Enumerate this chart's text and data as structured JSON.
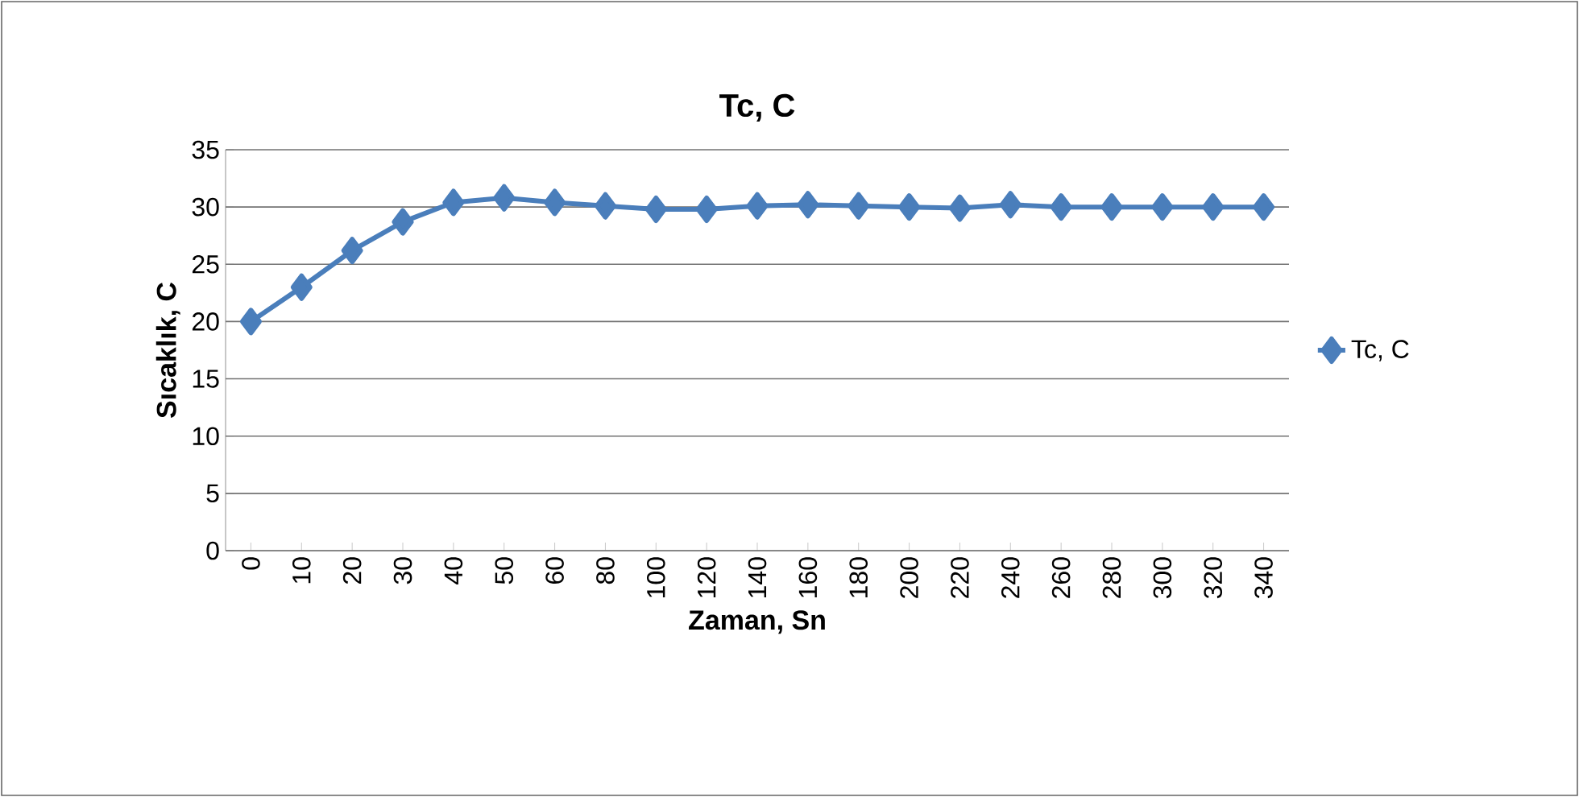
{
  "chart_data": {
    "type": "line",
    "title": "Tc,  C",
    "xlabel": "Zaman, Sn",
    "ylabel": "Sıcaklık, C",
    "categories": [
      "0",
      "10",
      "20",
      "30",
      "40",
      "50",
      "60",
      "80",
      "100",
      "120",
      "140",
      "160",
      "180",
      "200",
      "220",
      "240",
      "260",
      "280",
      "300",
      "320",
      "340"
    ],
    "series": [
      {
        "name": "Tc,  C",
        "color": "#4a7ebb",
        "values": [
          20,
          23,
          26.2,
          28.7,
          30.4,
          30.8,
          30.4,
          30.1,
          29.8,
          29.8,
          30.1,
          30.2,
          30.1,
          30,
          29.9,
          30.2,
          30,
          30,
          30,
          30,
          30
        ]
      }
    ],
    "ylim": [
      0,
      35
    ],
    "yticks": [
      0,
      5,
      10,
      15,
      20,
      25,
      30,
      35
    ],
    "grid": "y",
    "legend": "right",
    "marker": "diamond",
    "line_style": "solid"
  }
}
